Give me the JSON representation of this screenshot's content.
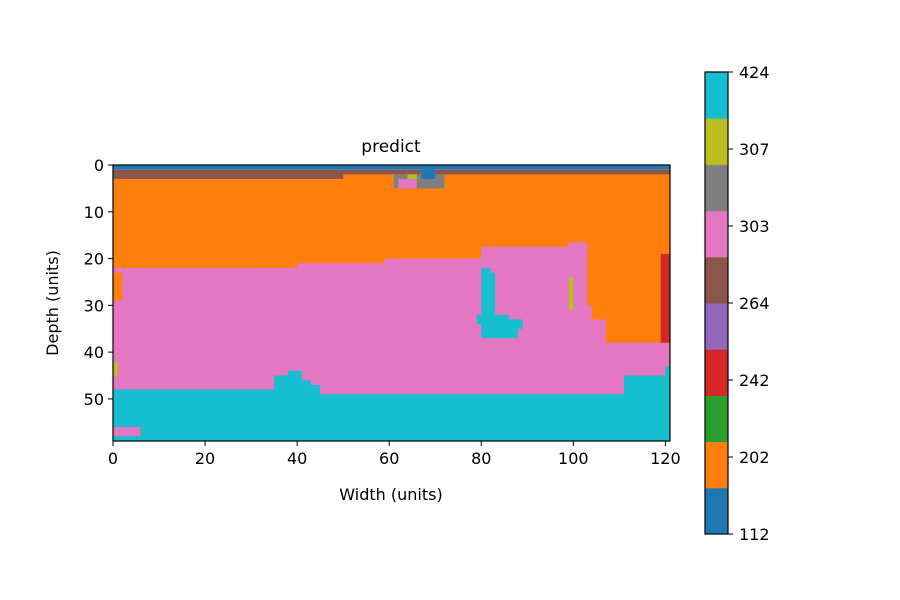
{
  "chart_data": {
    "type": "heatmap",
    "title": "predict",
    "xlabel": "Width (units)",
    "ylabel": "Depth (units)",
    "xlim": [
      0,
      121
    ],
    "ylim": [
      59,
      0
    ],
    "xticks": [
      "0",
      "20",
      "40",
      "60",
      "80",
      "100",
      "120"
    ],
    "yticks": [
      "0",
      "10",
      "20",
      "30",
      "40",
      "50"
    ],
    "colorbar": {
      "labels": [
        "112",
        "202",
        "242",
        "264",
        "303",
        "307",
        "424"
      ],
      "colors": [
        "#1f77b4",
        "#ff7f0e",
        "#2ca02c",
        "#d62728",
        "#9467bd",
        "#8c564b",
        "#e377c2",
        "#7f7f7f",
        "#bcbd22",
        "#17becf"
      ]
    },
    "regions": [
      {
        "value": "top blue layer",
        "color": "#1f77b4",
        "poly": [
          [
            0,
            0
          ],
          [
            121,
            0
          ],
          [
            121,
            1
          ],
          [
            0,
            1
          ]
        ]
      },
      {
        "value": "brown band",
        "color": "#8c564b",
        "poly": [
          [
            0,
            1
          ],
          [
            121,
            1
          ],
          [
            121,
            3
          ],
          [
            0,
            3
          ]
        ]
      },
      {
        "value": "orange layer",
        "color": "#ff7f0e",
        "poly": [
          [
            0,
            3
          ],
          [
            50,
            3
          ],
          [
            50,
            2
          ],
          [
            121,
            2
          ],
          [
            121,
            40
          ],
          [
            0,
            40
          ]
        ]
      },
      {
        "value": "pink layer",
        "color": "#e377c2",
        "poly": [
          [
            0,
            22
          ],
          [
            40,
            22
          ],
          [
            40,
            21
          ],
          [
            59,
            21
          ],
          [
            59,
            20
          ],
          [
            80,
            20
          ],
          [
            80,
            17.5
          ],
          [
            99,
            17.5
          ],
          [
            99,
            16.5
          ],
          [
            103,
            16.5
          ],
          [
            103,
            30
          ],
          [
            104,
            30
          ],
          [
            104,
            33
          ],
          [
            107,
            33
          ],
          [
            107,
            38
          ],
          [
            121,
            38
          ],
          [
            121,
            58
          ],
          [
            0,
            58
          ]
        ]
      },
      {
        "value": "orange pocket left",
        "color": "#ff7f0e",
        "poly": [
          [
            0,
            23
          ],
          [
            2,
            23
          ],
          [
            2,
            29
          ],
          [
            0,
            29
          ]
        ]
      },
      {
        "value": "cyan inclusion",
        "color": "#17becf",
        "poly": [
          [
            80,
            22
          ],
          [
            82,
            22
          ],
          [
            82,
            23
          ],
          [
            83,
            23
          ],
          [
            83,
            32
          ],
          [
            86,
            32
          ],
          [
            86,
            33
          ],
          [
            89,
            33
          ],
          [
            89,
            35
          ],
          [
            88,
            35
          ],
          [
            88,
            37
          ],
          [
            80,
            37
          ],
          [
            80,
            34
          ],
          [
            79,
            34
          ],
          [
            79,
            32
          ],
          [
            80,
            32
          ]
        ]
      },
      {
        "value": "olive streak",
        "color": "#bcbd22",
        "poly": [
          [
            99,
            24
          ],
          [
            100,
            24
          ],
          [
            100,
            31
          ],
          [
            99,
            31
          ]
        ]
      },
      {
        "value": "red edge",
        "color": "#d62728",
        "poly": [
          [
            119,
            19
          ],
          [
            121,
            19
          ],
          [
            121,
            38
          ],
          [
            119,
            38
          ]
        ]
      },
      {
        "value": "olive dot left",
        "color": "#bcbd22",
        "poly": [
          [
            0,
            42
          ],
          [
            1,
            42
          ],
          [
            1,
            45
          ],
          [
            0,
            45
          ]
        ]
      },
      {
        "value": "cyan bottom layer",
        "color": "#17becf",
        "poly": [
          [
            0,
            48
          ],
          [
            35,
            48
          ],
          [
            35,
            45
          ],
          [
            38,
            45
          ],
          [
            38,
            44
          ],
          [
            41,
            44
          ],
          [
            41,
            46
          ],
          [
            43,
            46
          ],
          [
            43,
            47
          ],
          [
            45,
            47
          ],
          [
            45,
            49
          ],
          [
            111,
            49
          ],
          [
            111,
            45
          ],
          [
            120,
            45
          ],
          [
            120,
            43
          ],
          [
            121,
            43
          ],
          [
            121,
            60
          ],
          [
            0,
            60
          ]
        ]
      },
      {
        "value": "pink bottom patch",
        "color": "#e377c2",
        "poly": [
          [
            0,
            56
          ],
          [
            6,
            56
          ],
          [
            6,
            58
          ],
          [
            0,
            58
          ]
        ]
      },
      {
        "value": "surface noise",
        "color": "#7f7f7f",
        "poly": [
          [
            61,
            2
          ],
          [
            72,
            2
          ],
          [
            72,
            5
          ],
          [
            61,
            5
          ]
        ]
      },
      {
        "value": "surface noise 2",
        "color": "#e377c2",
        "poly": [
          [
            62,
            3
          ],
          [
            66,
            3
          ],
          [
            66,
            5
          ],
          [
            62,
            5
          ]
        ]
      },
      {
        "value": "surface noise 3",
        "color": "#bcbd22",
        "poly": [
          [
            64,
            2
          ],
          [
            66,
            2
          ],
          [
            66,
            3
          ],
          [
            64,
            3
          ]
        ]
      },
      {
        "value": "surface noise 4",
        "color": "#1f77b4",
        "poly": [
          [
            67,
            1
          ],
          [
            70,
            1
          ],
          [
            70,
            3
          ],
          [
            67,
            3
          ]
        ]
      }
    ]
  }
}
